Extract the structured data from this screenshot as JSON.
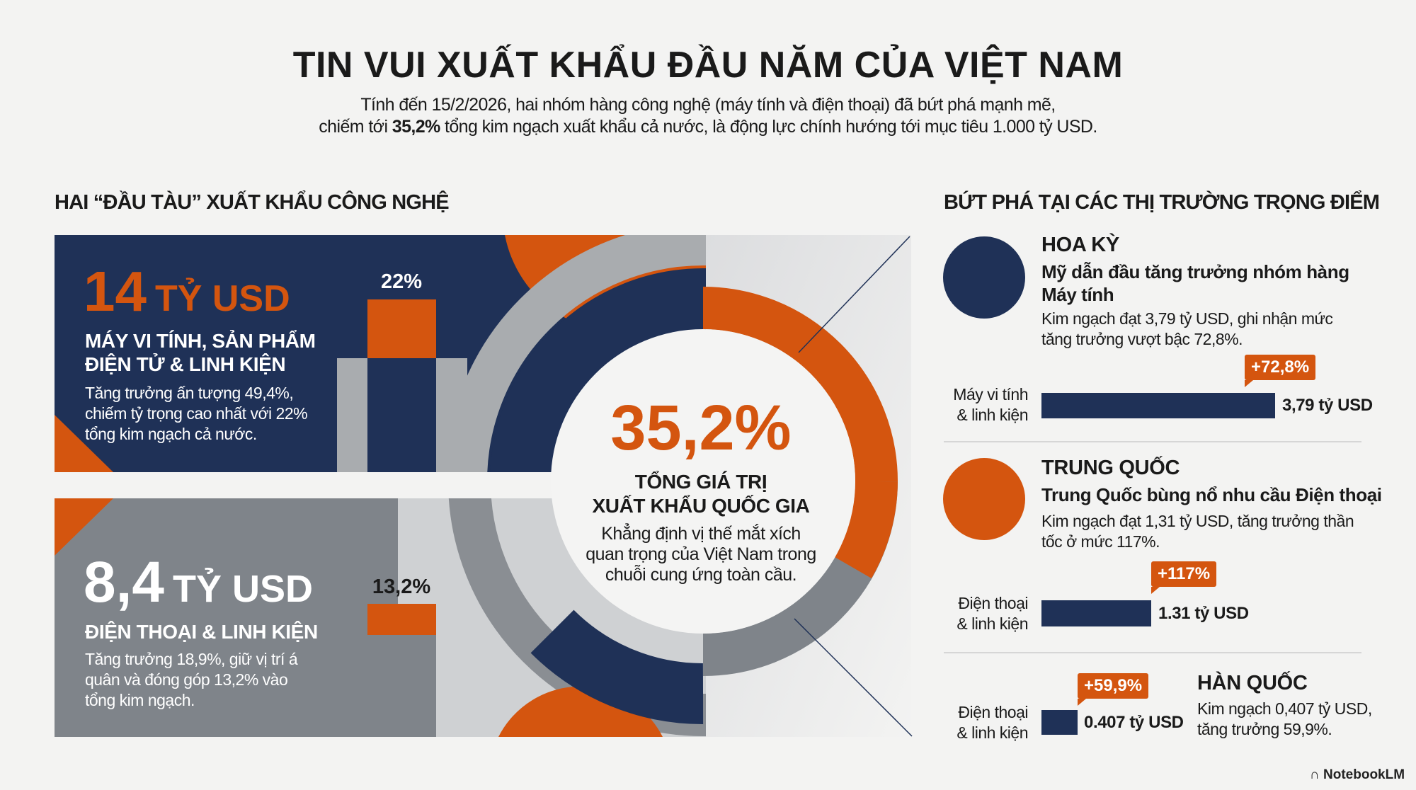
{
  "header": {
    "title": "TIN VUI XUẤT KHẨU ĐẦU NĂM CỦA VIỆT NAM",
    "subtitle_line1": "Tính đến 15/2/2026, hai nhóm hàng công nghệ (máy tính và điện thoại) đã bứt phá mạnh mẽ,",
    "subtitle_line2_pre": "chiếm tới ",
    "subtitle_line2_bold": "35,2%",
    "subtitle_line2_post": " tổng kim ngạch xuất khẩu cả nước, là động lực chính hướng tới mục tiêu 1.000 tỷ USD."
  },
  "left_section": {
    "heading": "HAI “ĐẦU TÀU” XUẤT KHẨU CÔNG NGHỆ",
    "cards": [
      {
        "value": "14",
        "unit": "TỶ USD",
        "title_line1": "MÁY VI TÍNH, SẢN PHẨM",
        "title_line2": "ĐIỆN TỬ & LINH KIỆN",
        "body": [
          "Tăng trưởng ấn tượng 49,4%,",
          "chiếm tỷ trọng cao nhất với 22%",
          "tổng kim ngạch cả nước."
        ],
        "share_label": "22%",
        "share": 22
      },
      {
        "value": "8,4",
        "unit": "TỶ USD",
        "title_line1": "ĐIỆN THOẠI & LINH KIỆN",
        "body": [
          "Tăng trưởng 18,9%, giữ vị trí á",
          "quân và đóng góp 13,2% vào",
          "tổng kim ngạch."
        ],
        "share_label": "13,2%",
        "share": 13.2
      }
    ]
  },
  "center": {
    "value": "35,2%",
    "title_line1": "TỔNG GIÁ TRỊ",
    "title_line2": "XUẤT KHẨU QUỐC GIA",
    "body": [
      "Khẳng định vị thế mắt xích",
      "quan trọng của Việt Nam trong",
      "chuỗi cung ứng toàn cầu."
    ]
  },
  "right_section": {
    "heading": "BỨT PHÁ TẠI CÁC THỊ TRƯỜNG TRỌNG ĐIỂM",
    "markets": [
      {
        "country": "HOA KỲ",
        "color": "#1f3157",
        "headline": [
          "Mỹ dẫn đầu tăng trưởng nhóm hàng",
          "Máy tính"
        ],
        "body": [
          "Kim ngạch đạt 3,79 tỷ USD, ghi nhận mức",
          "tăng trưởng vượt bậc 72,8%."
        ],
        "bar_label": [
          "Máy vi tính",
          "& linh kiện"
        ],
        "bar_value": "3,79 tỷ USD",
        "value": 3.79,
        "growth": "+72,8%"
      },
      {
        "country": "TRUNG QUỐC",
        "color": "#d4550f",
        "headline": [
          "Trung Quốc bùng nổ nhu cầu Điện thoại"
        ],
        "body": [
          "Kim ngạch đạt 1,31 tỷ USD, tăng trưởng thần",
          "tốc ở mức 117%."
        ],
        "bar_label": [
          "Điện thoại",
          "& linh kiện"
        ],
        "bar_value": "1.31 tỷ USD",
        "value": 1.31,
        "growth": "+117%"
      },
      {
        "country": "HÀN QUỐC",
        "body": [
          "Kim ngạch 0,407 tỷ USD,",
          "tăng trưởng 59,9%."
        ],
        "bar_label": [
          "Điện thoại",
          "& linh kiện"
        ],
        "bar_value": "0.407 tỷ USD",
        "value": 0.407,
        "growth": "+59,9%"
      }
    ]
  },
  "footer": {
    "brand": "NotebookLM"
  },
  "colors": {
    "navy": "#1f3157",
    "orange": "#d4550f",
    "gray": "#7f848a",
    "light_gray": "#cfd1d3",
    "background": "#f3f3f2"
  }
}
